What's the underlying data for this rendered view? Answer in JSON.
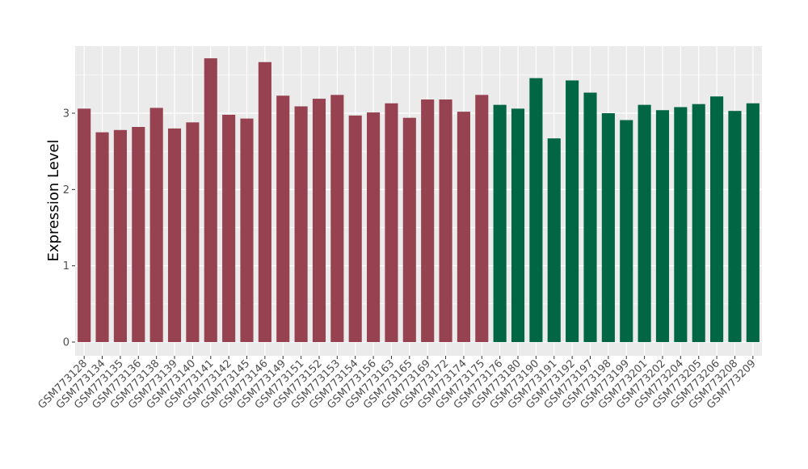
{
  "chart_data": {
    "type": "bar",
    "title": "",
    "xlabel": "",
    "ylabel": "Expression Level",
    "ylim": [
      -0.18,
      3.88
    ],
    "yticks": [
      0,
      1,
      2,
      3
    ],
    "grid": true,
    "categories": [
      "GSM773128",
      "GSM773134",
      "GSM773135",
      "GSM773136",
      "GSM773138",
      "GSM773139",
      "GSM773140",
      "GSM773141",
      "GSM773142",
      "GSM773145",
      "GSM773146",
      "GSM773149",
      "GSM773151",
      "GSM773152",
      "GSM773153",
      "GSM773154",
      "GSM773156",
      "GSM773163",
      "GSM773165",
      "GSM773169",
      "GSM773172",
      "GSM773174",
      "GSM773175",
      "GSM773176",
      "GSM773180",
      "GSM773190",
      "GSM773191",
      "GSM773192",
      "GSM773197",
      "GSM773198",
      "GSM773199",
      "GSM773201",
      "GSM773202",
      "GSM773204",
      "GSM773205",
      "GSM773206",
      "GSM773208",
      "GSM773209"
    ],
    "values": [
      3.06,
      2.75,
      2.78,
      2.82,
      3.07,
      2.8,
      2.88,
      3.72,
      2.98,
      2.93,
      3.67,
      3.23,
      3.09,
      3.19,
      3.24,
      2.97,
      3.01,
      3.13,
      2.94,
      3.18,
      3.18,
      3.02,
      3.24,
      3.11,
      3.06,
      3.46,
      2.67,
      3.43,
      3.27,
      3.0,
      2.91,
      3.11,
      3.04,
      3.08,
      3.12,
      3.22,
      3.03,
      3.13
    ],
    "groups": [
      0,
      0,
      0,
      0,
      0,
      0,
      0,
      0,
      0,
      0,
      0,
      0,
      0,
      0,
      0,
      0,
      0,
      0,
      0,
      0,
      0,
      0,
      0,
      1,
      1,
      1,
      1,
      1,
      1,
      1,
      1,
      1,
      1,
      1,
      1,
      1,
      1,
      1
    ],
    "colors": {
      "group_0": "#974250",
      "group_1": "#006644",
      "panel_bg": "#ebebeb",
      "grid": "#ffffff"
    }
  }
}
